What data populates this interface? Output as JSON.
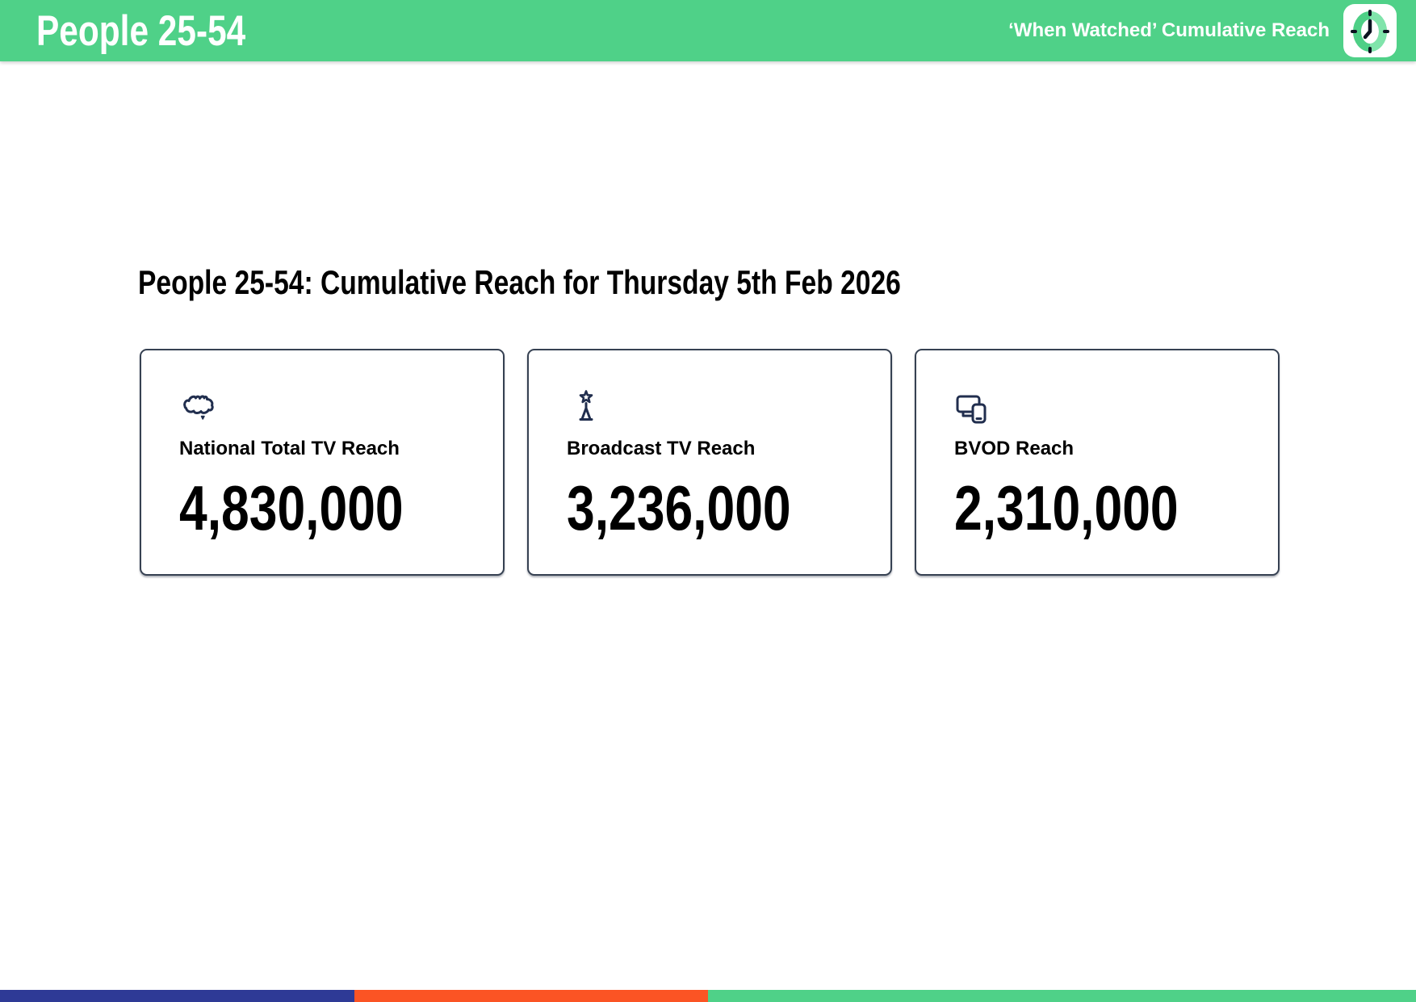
{
  "header": {
    "title": "People 25-54",
    "subtitle": "‘When Watched’ Cumulative Reach",
    "logo_icon": "clock-icon",
    "bg_color": "#4FD188",
    "text_color": "#FFFFFF"
  },
  "main": {
    "heading": "People 25-54: Cumulative Reach for Thursday 5th Feb 2026",
    "icon_color": "#212E4E",
    "card_border_color": "#364152",
    "cards": [
      {
        "icon": "australia-map-icon",
        "label": "National Total TV Reach",
        "value": "4,830,000"
      },
      {
        "icon": "broadcast-tower-icon",
        "label": "Broadcast TV Reach",
        "value": "3,236,000"
      },
      {
        "icon": "multi-device-icon",
        "label": "BVOD Reach",
        "value": "2,310,000"
      }
    ]
  },
  "footer": {
    "stripes": [
      {
        "color": "#2E3A96",
        "width_pct": 25
      },
      {
        "color": "#FB5424",
        "width_pct": 25
      },
      {
        "color": "#4FD188",
        "width_pct": 50
      }
    ]
  }
}
